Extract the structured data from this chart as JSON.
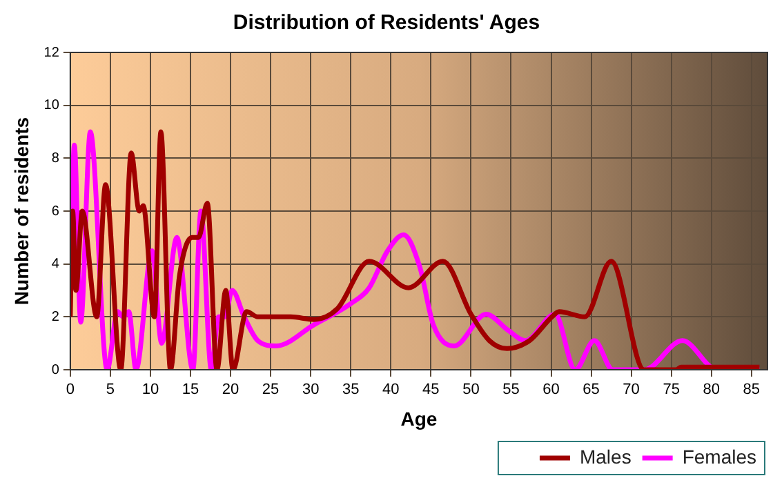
{
  "chart_data": {
    "type": "line",
    "title": "Distribution of Residents' Ages",
    "xlabel": "Age",
    "ylabel": "Number of residents",
    "xlim": [
      0,
      87
    ],
    "xticks": [
      0,
      5,
      10,
      15,
      20,
      25,
      30,
      35,
      40,
      45,
      50,
      55,
      60,
      65,
      70,
      75,
      80,
      85
    ],
    "ylim": [
      0,
      12
    ],
    "yticks": [
      0,
      2,
      4,
      6,
      8,
      10,
      12
    ],
    "grid": true,
    "legend": "bottom",
    "marker": "none",
    "line_style": "solid",
    "series": [
      {
        "name": "Males",
        "color": "#a00000",
        "x": [
          0,
          0.3,
          0.7,
          1.5,
          3.3,
          4.4,
          6.3,
          7.6,
          8.6,
          9.1,
          10.5,
          11.3,
          12.5,
          13.6,
          15.2,
          16,
          17.1,
          18.3,
          19.4,
          20.3,
          22,
          23.4,
          27.5,
          30.4,
          33.3,
          37.3,
          42.2,
          46.5,
          50,
          52.3,
          54.5,
          57.3,
          60.1,
          61,
          64.2,
          67.5,
          71.6,
          75.6,
          76.2,
          86
        ],
        "values": [
          2,
          6,
          3,
          6,
          2,
          7,
          0,
          8.2,
          6,
          6.2,
          2,
          9,
          0,
          3.5,
          5,
          5,
          6.3,
          0,
          3,
          0,
          2.2,
          2,
          2,
          1.9,
          2.3,
          4.1,
          3.1,
          4.1,
          2.1,
          1.1,
          0.8,
          1.1,
          2,
          2.2,
          2,
          4.1,
          0,
          0,
          0.1,
          0.1
        ]
      },
      {
        "name": "Females",
        "color": "#ff00ff",
        "x": [
          0,
          0.5,
          1.3,
          2.5,
          4.6,
          5.9,
          6.6,
          7.3,
          8.2,
          10.2,
          11.4,
          13.3,
          15.3,
          16.3,
          17.6,
          18.5,
          19.3,
          20.2,
          21.7,
          23.4,
          25.7,
          30.4,
          35,
          37.3,
          39.6,
          41.6,
          43.6,
          45.3,
          47.9,
          51.9,
          54.6,
          56.8,
          60.5,
          63,
          65.4,
          67.7,
          71.6,
          76.4,
          80.7,
          86
        ],
        "values": [
          2.8,
          8.5,
          1.8,
          9,
          0,
          2.2,
          2,
          2.2,
          0,
          4.5,
          1,
          5,
          0,
          6,
          0,
          2,
          2,
          3,
          2,
          1.1,
          0.9,
          1.7,
          2.5,
          3.1,
          4.5,
          5.1,
          3.9,
          1.7,
          0.9,
          2.1,
          1.5,
          1.1,
          2.1,
          0,
          1.1,
          0,
          0,
          1.1,
          0,
          0
        ]
      }
    ]
  }
}
